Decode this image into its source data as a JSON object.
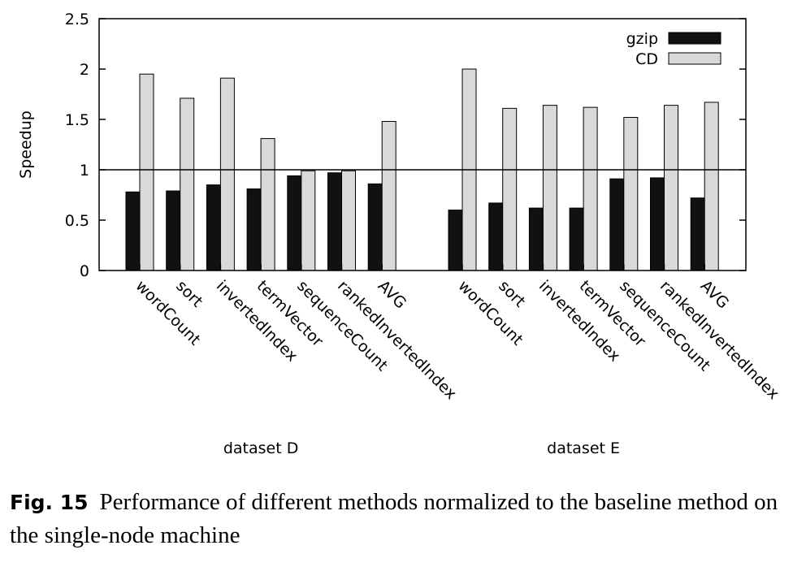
{
  "chart_data": {
    "type": "bar",
    "ylabel": "Speedup",
    "ylim": [
      0,
      2.5
    ],
    "yticks": [
      "0",
      "0.5",
      "1",
      "1.5",
      "2",
      "2.5"
    ],
    "reference_line": 1,
    "groups": [
      {
        "name": "dataset D",
        "categories": [
          "wordCount",
          "sort",
          "invertedIndex",
          "termVector",
          "sequenceCount",
          "rankedInvertedIndex",
          "AVG"
        ],
        "series": [
          {
            "name": "gzip",
            "values": [
              0.78,
              0.79,
              0.85,
              0.81,
              0.94,
              0.97,
              0.86
            ]
          },
          {
            "name": "CD",
            "values": [
              1.95,
              1.71,
              1.91,
              1.31,
              0.99,
              0.99,
              1.48
            ]
          }
        ]
      },
      {
        "name": "dataset E",
        "categories": [
          "wordCount",
          "sort",
          "invertedIndex",
          "termVector",
          "sequenceCount",
          "rankedInvertedIndex",
          "AVG"
        ],
        "series": [
          {
            "name": "gzip",
            "values": [
              0.6,
              0.67,
              0.62,
              0.62,
              0.91,
              0.92,
              0.72
            ]
          },
          {
            "name": "CD",
            "values": [
              2.0,
              1.61,
              1.64,
              1.62,
              1.52,
              1.64,
              1.67
            ]
          }
        ]
      }
    ],
    "legend": {
      "position": "top-right",
      "entries": [
        {
          "label": "gzip",
          "color": "#111111"
        },
        {
          "label": "CD",
          "color": "#d9d9d9"
        }
      ]
    },
    "grid": false
  },
  "caption": {
    "label": "Fig. 15",
    "text": "Performance of different methods normalized to the baseline method on the single-node machine"
  }
}
